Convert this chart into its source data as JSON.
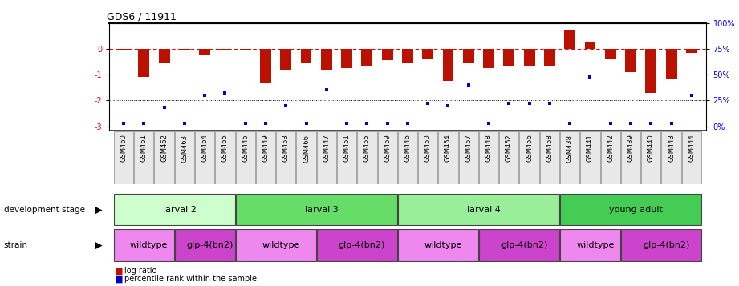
{
  "title": "GDS6 / 11911",
  "samples": [
    "GSM460",
    "GSM461",
    "GSM462",
    "GSM463",
    "GSM464",
    "GSM465",
    "GSM445",
    "GSM449",
    "GSM453",
    "GSM466",
    "GSM447",
    "GSM451",
    "GSM455",
    "GSM459",
    "GSM446",
    "GSM450",
    "GSM454",
    "GSM457",
    "GSM448",
    "GSM452",
    "GSM456",
    "GSM458",
    "GSM438",
    "GSM441",
    "GSM442",
    "GSM439",
    "GSM440",
    "GSM443",
    "GSM444"
  ],
  "log_ratio": [
    -0.05,
    -1.1,
    -0.55,
    -0.05,
    -0.25,
    -0.05,
    -0.05,
    -1.35,
    -0.85,
    -0.55,
    -0.8,
    -0.75,
    -0.7,
    -0.45,
    -0.55,
    -0.4,
    -1.25,
    -0.55,
    -0.75,
    -0.7,
    -0.65,
    -0.7,
    0.7,
    0.25,
    -0.4,
    -0.9,
    -1.7,
    -1.15,
    -0.15
  ],
  "percentile": [
    3,
    3,
    18,
    3,
    30,
    32,
    3,
    3,
    20,
    3,
    35,
    3,
    3,
    3,
    3,
    22,
    20,
    40,
    3,
    22,
    22,
    22,
    3,
    48,
    3,
    3,
    3,
    3,
    30
  ],
  "dev_stage_groups": [
    {
      "label": "larval 2",
      "start": 0,
      "end": 6,
      "color": "#ccffcc"
    },
    {
      "label": "larval 3",
      "start": 6,
      "end": 14,
      "color": "#66dd66"
    },
    {
      "label": "larval 4",
      "start": 14,
      "end": 22,
      "color": "#99ee99"
    },
    {
      "label": "young adult",
      "start": 22,
      "end": 29,
      "color": "#44cc55"
    }
  ],
  "strain_groups": [
    {
      "label": "wildtype",
      "start": 0,
      "end": 3,
      "color": "#ee88ee"
    },
    {
      "label": "glp-4(bn2)",
      "start": 3,
      "end": 6,
      "color": "#cc44cc"
    },
    {
      "label": "wildtype",
      "start": 6,
      "end": 10,
      "color": "#ee88ee"
    },
    {
      "label": "glp-4(bn2)",
      "start": 10,
      "end": 14,
      "color": "#cc44cc"
    },
    {
      "label": "wildtype",
      "start": 14,
      "end": 18,
      "color": "#ee88ee"
    },
    {
      "label": "glp-4(bn2)",
      "start": 18,
      "end": 22,
      "color": "#cc44cc"
    },
    {
      "label": "wildtype",
      "start": 22,
      "end": 25,
      "color": "#ee88ee"
    },
    {
      "label": "glp-4(bn2)",
      "start": 25,
      "end": 29,
      "color": "#cc44cc"
    }
  ],
  "ylim": [
    -3.15,
    1.0
  ],
  "yticks_left": [
    0,
    -1,
    -2,
    -3
  ],
  "ytick_labels_left": [
    "0",
    "-1",
    "-2",
    "-3"
  ],
  "right_yticks_pct": [
    0,
    25,
    50,
    75,
    100
  ],
  "bar_color": "#bb1100",
  "dot_color": "#0000cc",
  "bar_width": 0.55,
  "dotted_lines": [
    -1.0,
    -2.0
  ],
  "zero_line_color": "#cc1100",
  "background_color": "#ffffff",
  "tick_label_fontsize": 7,
  "bar_fontsize": 7,
  "label_fontsize": 8
}
